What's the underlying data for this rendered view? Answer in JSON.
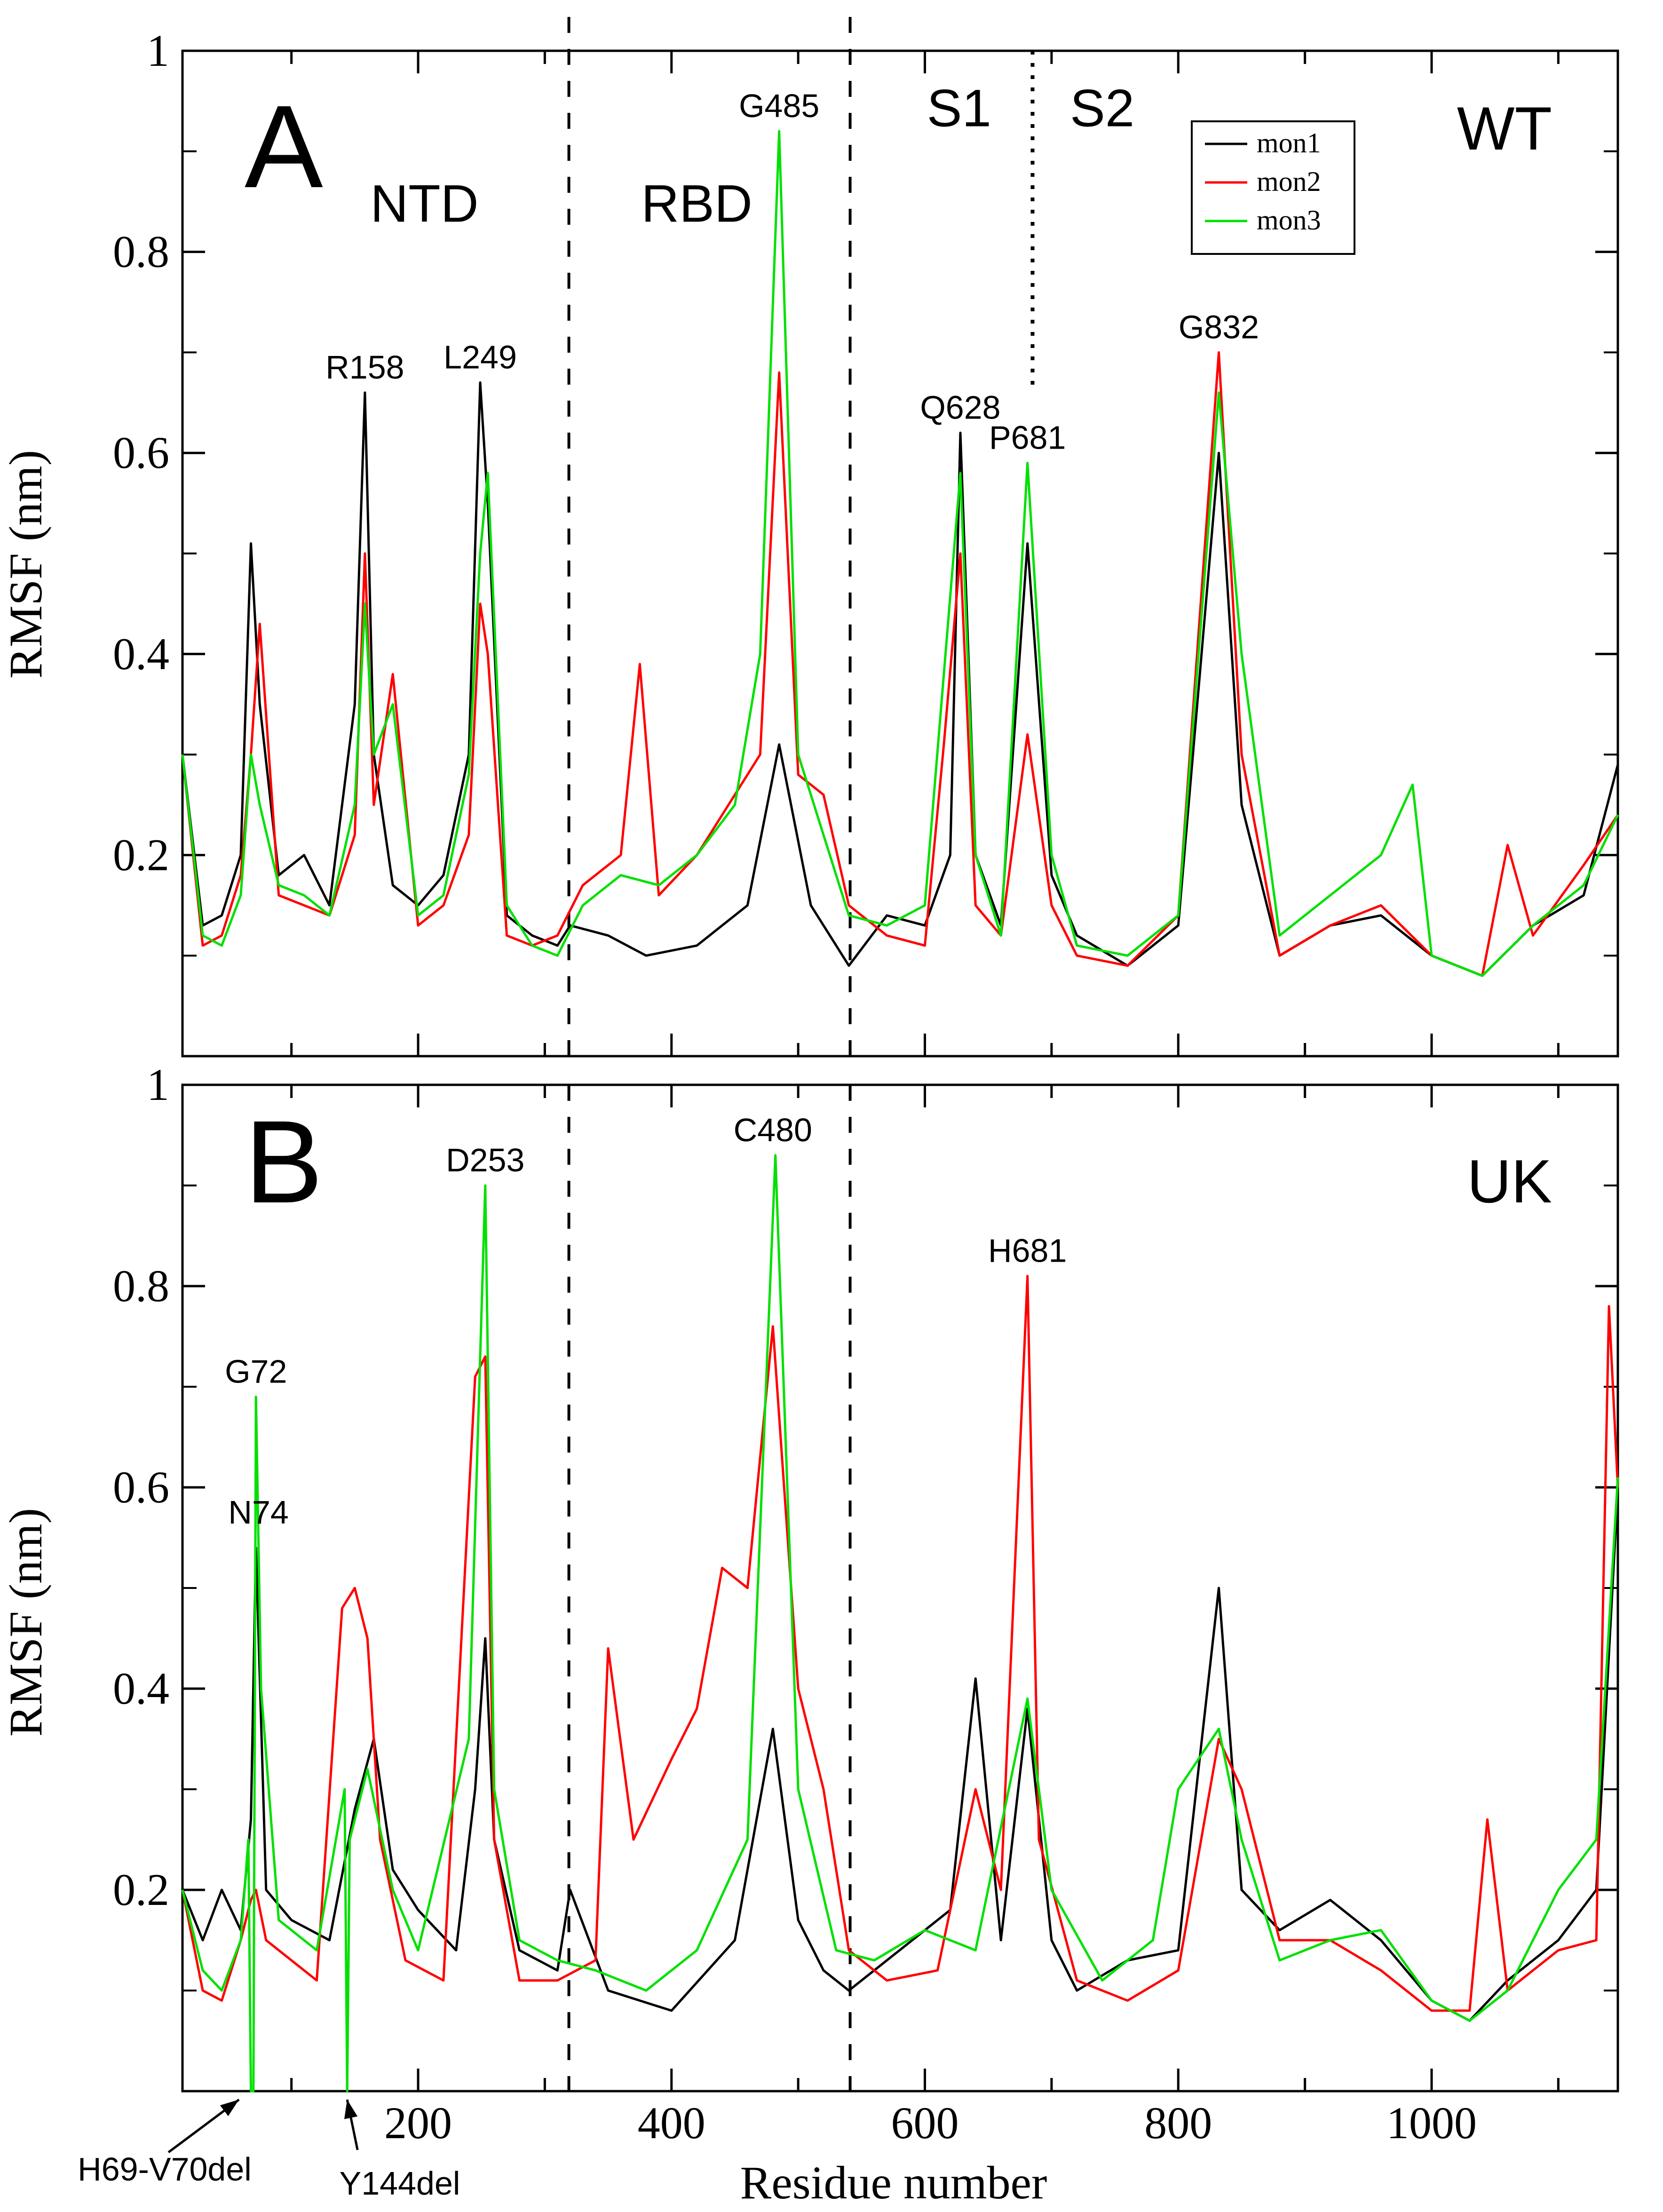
{
  "figure": {
    "x_axis_title": "Residue number",
    "y_axis_title": "RMSF (nm)"
  },
  "chart_data": [
    {
      "type": "line",
      "panel": "A",
      "variant": "WT",
      "xlabel": "Residue number",
      "ylabel": "RMSF (nm)",
      "xlim": [
        14,
        1147
      ],
      "ylim": [
        0,
        1
      ],
      "xticks": [
        200,
        400,
        600,
        800,
        1000
      ],
      "yticks": [
        0.2,
        0.4,
        0.6,
        0.8,
        1
      ],
      "ytick_labels": [
        "0.2",
        "0.4",
        "0.6",
        "0.8",
        "1"
      ],
      "dashed_lines_x": [
        319,
        541
      ],
      "dotted_line_x": 685,
      "regions": [
        {
          "label": "NTD",
          "x": 205,
          "y": 0.83
        },
        {
          "label": "RBD",
          "x": 420,
          "y": 0.83
        },
        {
          "label": "S1",
          "x": 627,
          "y": 0.925
        },
        {
          "label": "S2",
          "x": 740,
          "y": 0.925
        }
      ],
      "peak_labels": [
        {
          "label": "R158",
          "x": 158,
          "y": 0.66
        },
        {
          "label": "L249",
          "x": 249,
          "y": 0.67
        },
        {
          "label": "G485",
          "x": 485,
          "y": 0.92
        },
        {
          "label": "Q628",
          "x": 628,
          "y": 0.62
        },
        {
          "label": "P681",
          "x": 681,
          "y": 0.59
        },
        {
          "label": "G832",
          "x": 832,
          "y": 0.7
        }
      ],
      "legend": {
        "position": "top-right",
        "entries": [
          "mon1",
          "mon2",
          "mon3"
        ]
      },
      "series": [
        {
          "name": "mon1",
          "color": "#000000",
          "x": [
            14,
            30,
            45,
            60,
            68,
            75,
            90,
            110,
            130,
            150,
            158,
            165,
            180,
            200,
            220,
            240,
            249,
            255,
            270,
            290,
            310,
            320,
            350,
            380,
            420,
            460,
            485,
            510,
            540,
            570,
            600,
            620,
            628,
            640,
            660,
            681,
            700,
            720,
            760,
            800,
            832,
            850,
            880,
            920,
            960,
            1000,
            1040,
            1080,
            1120,
            1147
          ],
          "y": [
            0.3,
            0.13,
            0.14,
            0.2,
            0.51,
            0.35,
            0.18,
            0.2,
            0.15,
            0.35,
            0.66,
            0.3,
            0.17,
            0.15,
            0.18,
            0.3,
            0.67,
            0.55,
            0.14,
            0.12,
            0.11,
            0.13,
            0.12,
            0.1,
            0.11,
            0.15,
            0.31,
            0.15,
            0.09,
            0.14,
            0.13,
            0.2,
            0.62,
            0.2,
            0.13,
            0.51,
            0.18,
            0.12,
            0.09,
            0.13,
            0.6,
            0.25,
            0.1,
            0.13,
            0.14,
            0.1,
            0.08,
            0.13,
            0.16,
            0.29
          ]
        },
        {
          "name": "mon2",
          "color": "#ff0000",
          "x": [
            14,
            30,
            45,
            60,
            68,
            75,
            90,
            110,
            130,
            150,
            158,
            165,
            180,
            200,
            220,
            240,
            249,
            255,
            270,
            290,
            310,
            330,
            360,
            375,
            390,
            420,
            450,
            470,
            485,
            500,
            520,
            540,
            570,
            600,
            615,
            628,
            640,
            660,
            681,
            700,
            720,
            760,
            800,
            832,
            850,
            880,
            920,
            960,
            1000,
            1040,
            1060,
            1080,
            1120,
            1147
          ],
          "y": [
            0.3,
            0.11,
            0.12,
            0.18,
            0.3,
            0.43,
            0.16,
            0.15,
            0.14,
            0.22,
            0.5,
            0.25,
            0.38,
            0.13,
            0.15,
            0.22,
            0.45,
            0.4,
            0.12,
            0.11,
            0.12,
            0.17,
            0.2,
            0.39,
            0.16,
            0.2,
            0.26,
            0.3,
            0.68,
            0.28,
            0.26,
            0.15,
            0.12,
            0.11,
            0.31,
            0.5,
            0.15,
            0.12,
            0.32,
            0.15,
            0.1,
            0.09,
            0.14,
            0.7,
            0.3,
            0.1,
            0.13,
            0.15,
            0.1,
            0.08,
            0.21,
            0.12,
            0.19,
            0.24
          ]
        },
        {
          "name": "mon3",
          "color": "#00e000",
          "x": [
            14,
            30,
            45,
            60,
            68,
            75,
            90,
            110,
            130,
            150,
            158,
            165,
            180,
            200,
            220,
            240,
            249,
            255,
            270,
            290,
            310,
            330,
            360,
            390,
            420,
            450,
            470,
            485,
            500,
            520,
            540,
            570,
            600,
            628,
            640,
            660,
            681,
            700,
            720,
            760,
            800,
            832,
            850,
            880,
            920,
            960,
            985,
            1000,
            1040,
            1080,
            1120,
            1147
          ],
          "y": [
            0.3,
            0.12,
            0.11,
            0.16,
            0.3,
            0.25,
            0.17,
            0.16,
            0.14,
            0.25,
            0.45,
            0.3,
            0.35,
            0.14,
            0.16,
            0.28,
            0.5,
            0.58,
            0.15,
            0.11,
            0.1,
            0.15,
            0.18,
            0.17,
            0.2,
            0.25,
            0.4,
            0.92,
            0.3,
            0.22,
            0.14,
            0.13,
            0.15,
            0.58,
            0.2,
            0.12,
            0.59,
            0.2,
            0.11,
            0.1,
            0.14,
            0.66,
            0.4,
            0.12,
            0.16,
            0.2,
            0.27,
            0.1,
            0.08,
            0.13,
            0.17,
            0.24
          ]
        }
      ]
    },
    {
      "type": "line",
      "panel": "B",
      "variant": "UK",
      "xlabel": "Residue number",
      "ylabel": "RMSF (nm)",
      "xlim": [
        14,
        1147
      ],
      "ylim": [
        0,
        1
      ],
      "xticks": [
        200,
        400,
        600,
        800,
        1000
      ],
      "yticks": [
        0.2,
        0.4,
        0.6,
        0.8,
        1
      ],
      "ytick_labels": [
        "0.2",
        "0.4",
        "0.6",
        "0.8",
        "1"
      ],
      "dashed_lines_x": [
        319,
        541
      ],
      "peak_labels": [
        {
          "label": "G72",
          "x": 72,
          "y": 0.69
        },
        {
          "label": "N74",
          "x": 74,
          "y": 0.55
        },
        {
          "label": "D253",
          "x": 253,
          "y": 0.9
        },
        {
          "label": "C480",
          "x": 480,
          "y": 0.93
        },
        {
          "label": "H681",
          "x": 681,
          "y": 0.81
        }
      ],
      "mutation_labels": [
        {
          "label": "H69-V70del",
          "x": 69
        },
        {
          "label": "Y144del",
          "x": 144
        }
      ],
      "series": [
        {
          "name": "mon1",
          "color": "#000000",
          "x": [
            14,
            30,
            45,
            60,
            68,
            72,
            80,
            100,
            130,
            150,
            165,
            180,
            200,
            230,
            245,
            253,
            260,
            280,
            310,
            320,
            350,
            400,
            450,
            480,
            500,
            520,
            540,
            580,
            620,
            640,
            660,
            681,
            700,
            720,
            760,
            800,
            832,
            850,
            880,
            920,
            960,
            1000,
            1030,
            1060,
            1100,
            1130,
            1147
          ],
          "y": [
            0.2,
            0.15,
            0.2,
            0.16,
            0.27,
            0.54,
            0.2,
            0.17,
            0.15,
            0.28,
            0.35,
            0.22,
            0.18,
            0.14,
            0.3,
            0.45,
            0.25,
            0.14,
            0.12,
            0.2,
            0.1,
            0.08,
            0.15,
            0.36,
            0.17,
            0.12,
            0.1,
            0.14,
            0.18,
            0.41,
            0.15,
            0.38,
            0.15,
            0.1,
            0.13,
            0.14,
            0.5,
            0.2,
            0.16,
            0.19,
            0.15,
            0.09,
            0.07,
            0.11,
            0.15,
            0.2,
            0.6
          ]
        },
        {
          "name": "mon2",
          "color": "#ff0000",
          "x": [
            14,
            30,
            45,
            60,
            68,
            72,
            80,
            100,
            120,
            140,
            150,
            160,
            170,
            190,
            220,
            245,
            253,
            260,
            280,
            310,
            340,
            350,
            370,
            400,
            420,
            440,
            460,
            480,
            500,
            520,
            540,
            570,
            610,
            640,
            660,
            681,
            690,
            720,
            760,
            800,
            832,
            850,
            880,
            920,
            960,
            1000,
            1030,
            1044,
            1060,
            1100,
            1130,
            1140,
            1147
          ],
          "y": [
            0.2,
            0.1,
            0.09,
            0.15,
            0.19,
            0.2,
            0.15,
            0.13,
            0.11,
            0.48,
            0.5,
            0.45,
            0.25,
            0.13,
            0.11,
            0.71,
            0.73,
            0.25,
            0.11,
            0.11,
            0.13,
            0.44,
            0.25,
            0.33,
            0.38,
            0.52,
            0.5,
            0.76,
            0.4,
            0.3,
            0.14,
            0.11,
            0.12,
            0.3,
            0.2,
            0.81,
            0.25,
            0.11,
            0.09,
            0.12,
            0.35,
            0.3,
            0.15,
            0.15,
            0.12,
            0.08,
            0.08,
            0.27,
            0.1,
            0.14,
            0.15,
            0.78,
            0.6
          ]
        },
        {
          "name": "mon3",
          "color": "#00e000",
          "x": [
            14,
            30,
            45,
            60,
            66,
            68,
            70,
            72,
            76,
            90,
            120,
            142,
            144,
            146,
            160,
            180,
            200,
            240,
            253,
            260,
            280,
            310,
            340,
            380,
            420,
            460,
            482,
            500,
            530,
            560,
            600,
            640,
            681,
            700,
            740,
            780,
            800,
            832,
            850,
            880,
            920,
            960,
            1000,
            1030,
            1060,
            1100,
            1130,
            1147
          ],
          "y": [
            0.2,
            0.12,
            0.1,
            0.15,
            0.25,
            0.0,
            0.0,
            0.69,
            0.4,
            0.17,
            0.14,
            0.3,
            0.0,
            0.25,
            0.32,
            0.2,
            0.14,
            0.35,
            0.9,
            0.3,
            0.15,
            0.13,
            0.12,
            0.1,
            0.14,
            0.25,
            0.93,
            0.3,
            0.14,
            0.13,
            0.16,
            0.14,
            0.39,
            0.2,
            0.11,
            0.15,
            0.3,
            0.36,
            0.25,
            0.13,
            0.15,
            0.16,
            0.09,
            0.07,
            0.1,
            0.2,
            0.25,
            0.61
          ]
        }
      ]
    }
  ]
}
